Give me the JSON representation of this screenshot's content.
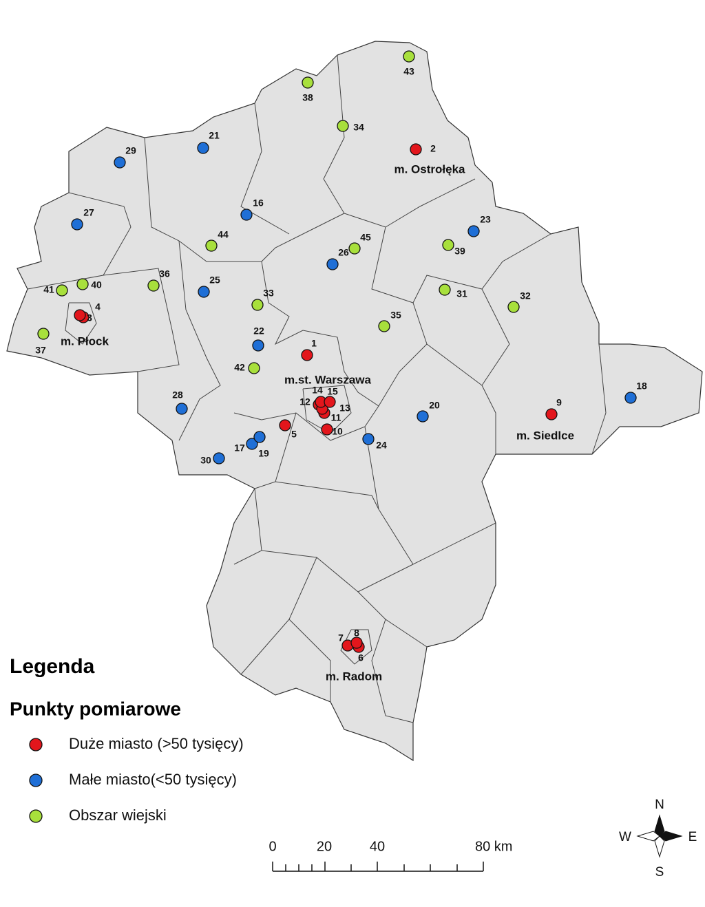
{
  "map": {
    "cities": [
      "m. Ostrołęka",
      "m. Płock",
      "m.st. Warszawa",
      "m. Siedlce",
      "m. Radom"
    ],
    "legend": {
      "title": "Legenda",
      "subtitle": "Punkty pomiarowe",
      "items": [
        {
          "label": "Duże miasto (>50 tysięcy)",
          "color": "#e3161c",
          "points": [
            "1",
            "2",
            "3",
            "4",
            "5",
            "6",
            "7",
            "8",
            "9",
            "10",
            "11",
            "12",
            "13",
            "14",
            "15"
          ]
        },
        {
          "label": "Małe miasto(<50 tysięcy)",
          "color": "#1f6fd6",
          "points": [
            "16",
            "17",
            "18",
            "19",
            "20",
            "21",
            "22",
            "23",
            "24",
            "25",
            "26",
            "27",
            "28",
            "29",
            "30"
          ]
        },
        {
          "label": "Obszar wiejski",
          "color": "#a8e03c",
          "points": [
            "31",
            "32",
            "33",
            "34",
            "35",
            "36",
            "37",
            "38",
            "39",
            "40",
            "41",
            "42",
            "43",
            "44",
            "45"
          ]
        }
      ]
    },
    "scale_bar": [
      "0",
      "20",
      "40",
      "80 km"
    ],
    "compass": [
      "N",
      "E",
      "S",
      "W"
    ]
  }
}
